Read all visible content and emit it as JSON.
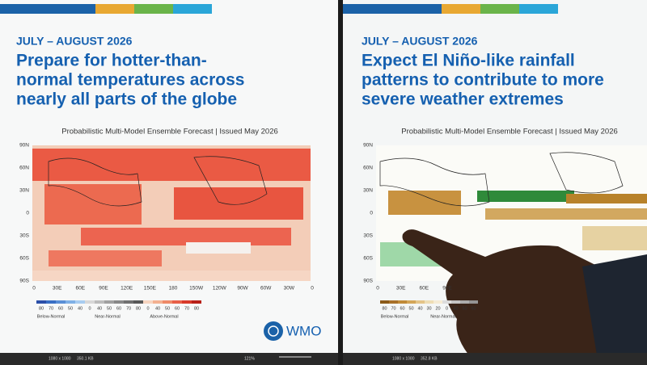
{
  "panels": [
    {
      "date": "JULY – AUGUST 2026",
      "headline": [
        "Prepare for hotter-than-",
        "normal temperatures across",
        "nearly all parts of the globe"
      ],
      "subtitle": "Probabilistic Multi-Model Ensemble Forecast | Issued May 2026",
      "lat_labels": [
        "90N",
        "60N",
        "30N",
        "0",
        "30S",
        "60S",
        "90S"
      ],
      "lon_labels": [
        "0",
        "30E",
        "60E",
        "90E",
        "120E",
        "150E",
        "180",
        "150W",
        "120W",
        "90W",
        "60W",
        "30W",
        "0"
      ],
      "legend_values": [
        "80",
        "70",
        "60",
        "50",
        "40",
        "0",
        "40",
        "50",
        "60",
        "70",
        "80",
        "0",
        "40",
        "50",
        "60",
        "70",
        "80"
      ],
      "legend_categories": [
        "Below-Normal",
        "Near-Normal",
        "Above-Normal"
      ],
      "status": {
        "size": "1080 x 1080",
        "file": "350.1 KB"
      }
    },
    {
      "date": "JULY – AUGUST 2026",
      "headline": [
        "Expect El Niño-like rainfall",
        "patterns to contribute to more",
        "severe weather extremes"
      ],
      "subtitle": "Probabilistic Multi-Model Ensemble Forecast | Issued May 2026",
      "lat_labels": [
        "90N",
        "60N",
        "30N",
        "0",
        "30S",
        "60S",
        "90S"
      ],
      "lon_labels": [
        "0",
        "30E",
        "60E",
        "90E"
      ],
      "legend_values": [
        "80",
        "70",
        "60",
        "50",
        "40",
        "30",
        "20",
        "0",
        "40",
        "50",
        "60"
      ],
      "legend_categories": [
        "Below-Normal",
        "Near-Normal"
      ],
      "status": {
        "size": "1080 x 1080",
        "file": "352.8 KB"
      }
    }
  ],
  "logo": "WMO",
  "zoom": "121%"
}
